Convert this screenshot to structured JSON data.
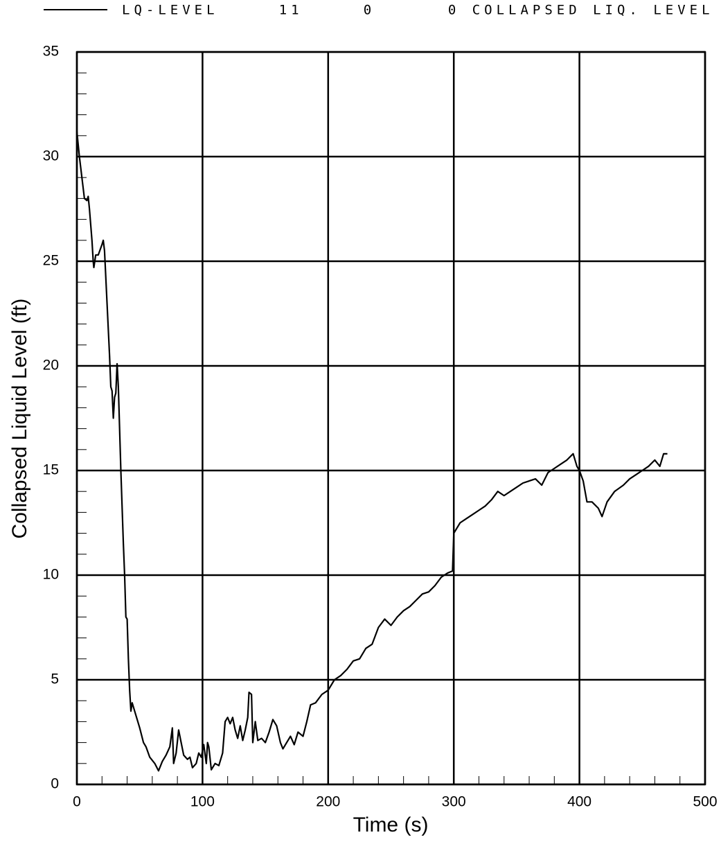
{
  "chart_data": {
    "type": "line",
    "xlabel": "Time   (s)",
    "ylabel": "Collapsed Liquid Level   (ft)",
    "xlim": [
      0,
      500
    ],
    "ylim": [
      0,
      35
    ],
    "xticks": [
      0,
      100,
      200,
      300,
      400,
      500
    ],
    "yticks": [
      0,
      5,
      10,
      15,
      20,
      25,
      30,
      35
    ],
    "xminorticks": [
      20,
      40,
      60,
      80,
      120,
      140,
      160,
      180,
      220,
      240,
      260,
      280,
      320,
      340,
      360,
      380,
      420,
      440,
      460,
      480
    ],
    "yminorticks": [
      1,
      2,
      3,
      4,
      6,
      7,
      8,
      9,
      11,
      12,
      13,
      14,
      16,
      17,
      18,
      19,
      21,
      22,
      23,
      24,
      26,
      27,
      28,
      29,
      31,
      32,
      33,
      34
    ],
    "grid": true,
    "legend": "top",
    "x": [
      0,
      2,
      4,
      6,
      8,
      9,
      10,
      12,
      13,
      13.5,
      15,
      17,
      20,
      21,
      22,
      24,
      26,
      27,
      28,
      29,
      30,
      31,
      32,
      33,
      35,
      37,
      38,
      39,
      40,
      41,
      42,
      43,
      44,
      46,
      50,
      53,
      55,
      58,
      62,
      65,
      68,
      71,
      74,
      76,
      77,
      79,
      81,
      83,
      85,
      88,
      90,
      92,
      95,
      97,
      99,
      101,
      103,
      104,
      105,
      107,
      110,
      113,
      116,
      118,
      120,
      122,
      124,
      126,
      128,
      130,
      132,
      134,
      136,
      137,
      139,
      140,
      142,
      144,
      147,
      150,
      153,
      156,
      159,
      162,
      164,
      167,
      170,
      173,
      176,
      180,
      183,
      186,
      190,
      195,
      200,
      205,
      210,
      215,
      220,
      225,
      230,
      235,
      240,
      245,
      250,
      255,
      260,
      265,
      270,
      275,
      280,
      285,
      290,
      295,
      299,
      300,
      305,
      310,
      315,
      320,
      325,
      330,
      335,
      340,
      345,
      350,
      355,
      360,
      365,
      370,
      375,
      380,
      385,
      390,
      395,
      398,
      400,
      403,
      406,
      410,
      415,
      418,
      422,
      428,
      435,
      440,
      445,
      450,
      455,
      460,
      464,
      467,
      470
    ],
    "series": [
      {
        "name": "LQ-LEVEL     11     0      0 COLLAPSED LIQ. LEVEL",
        "color": "#000000",
        "values": [
          31.2,
          30,
          29,
          28,
          27.9,
          28.1,
          27.5,
          26,
          25,
          24.7,
          25.3,
          25.3,
          25.8,
          26,
          25.5,
          23,
          20.5,
          19,
          18.8,
          17.5,
          18.5,
          18.7,
          20.1,
          19,
          15,
          11.5,
          10,
          8,
          7.9,
          6,
          4.5,
          3.5,
          3.9,
          3.5,
          2.7,
          2,
          1.8,
          1.3,
          1,
          0.65,
          1.1,
          1.4,
          1.8,
          2.7,
          1,
          1.5,
          2.6,
          2,
          1.4,
          1.2,
          1.3,
          0.8,
          1,
          1.5,
          1.3,
          1.9,
          1,
          2,
          1.8,
          0.7,
          1,
          0.9,
          1.5,
          3,
          3.2,
          2.9,
          3.2,
          2.6,
          2.2,
          2.8,
          2.1,
          2.6,
          3.2,
          4.4,
          4.3,
          2,
          3,
          2.1,
          2.2,
          2,
          2.5,
          3.1,
          2.8,
          2,
          1.7,
          2,
          2.3,
          1.9,
          2.5,
          2.3,
          3,
          3.8,
          3.9,
          4.3,
          4.5,
          5,
          5.2,
          5.5,
          5.9,
          6,
          6.5,
          6.7,
          7.5,
          7.9,
          7.6,
          8,
          8.3,
          8.5,
          8.8,
          9.1,
          9.2,
          9.5,
          9.9,
          10.1,
          10.2,
          12,
          12.5,
          12.7,
          12.9,
          13.1,
          13.3,
          13.6,
          14,
          13.8,
          14,
          14.2,
          14.4,
          14.5,
          14.6,
          14.3,
          14.9,
          15.1,
          15.3,
          15.5,
          15.8,
          15.2,
          15,
          14.5,
          13.5,
          13.5,
          13.2,
          12.8,
          13.5,
          14,
          14.3,
          14.6,
          14.8,
          15,
          15.2,
          15.5,
          15.2,
          15.8,
          15.8
        ]
      }
    ]
  }
}
